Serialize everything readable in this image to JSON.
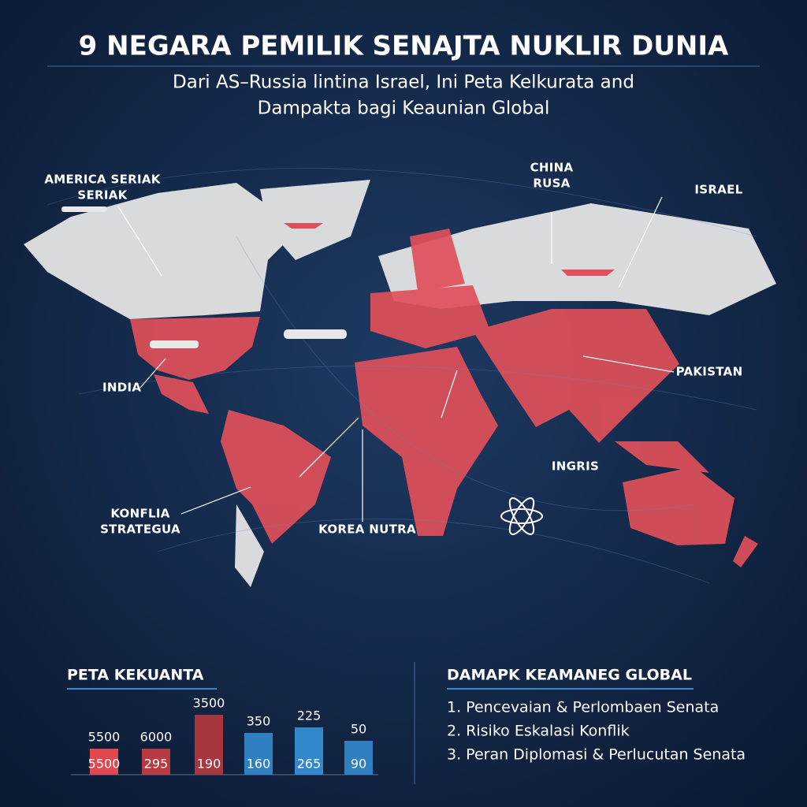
{
  "header": {
    "title": "9 NEGARA PEMILIK SENAJTA NUKLIR DUNIA",
    "subtitle": [
      "Dari AS–Russia lintina Israel, Ini Peta Kelkurata and",
      "Dampakta bagi Keaunian Global"
    ]
  },
  "map": {
    "labels": [
      {
        "lines": [
          "AMERICA SERIAK",
          "SERIAK"
        ]
      },
      {
        "lines": [
          "CHINA",
          "RUSA"
        ]
      },
      {
        "lines": [
          "ISRAEL"
        ]
      },
      {
        "lines": [
          "INDIA"
        ]
      },
      {
        "lines": [
          "PAKISTAN"
        ]
      },
      {
        "lines": [
          "INGRIS"
        ]
      },
      {
        "lines": [
          "KONFLIA",
          "STRATEGUA"
        ]
      },
      {
        "lines": [
          "KOREA NUTRA"
        ]
      }
    ]
  },
  "chart_panel": {
    "title": "PETA KEKUANTA",
    "bars": [
      {
        "top_label": "5500",
        "inner_label": "5500",
        "color": "#e0474f"
      },
      {
        "top_label": "6000",
        "inner_label": "295",
        "color": "#b83a42"
      },
      {
        "top_label": "3500",
        "inner_label": "190",
        "color": "#a8363e"
      },
      {
        "top_label": "350",
        "inner_label": "160",
        "color": "#2f7fc1"
      },
      {
        "top_label": "225",
        "inner_label": "265",
        "color": "#3388cc"
      },
      {
        "top_label": "50",
        "inner_label": "90",
        "color": "#2f7fc1"
      }
    ]
  },
  "impact_panel": {
    "title": "DAMAPK KEAMANEG GLOBAL",
    "items": [
      "1. Pencevaian & Perlombaen Senata",
      "2. Risiko Eskalasi Konflik",
      "3. Peran Diplomasi & Perlucutan Senata"
    ]
  }
}
